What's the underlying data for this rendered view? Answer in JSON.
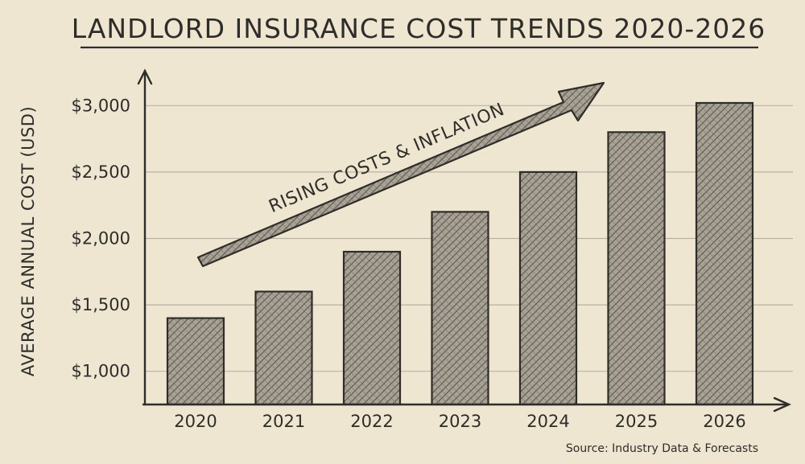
{
  "chart_data": {
    "type": "bar",
    "title": "LANDLORD INSURANCE COST TRENDS 2020-2026",
    "ylabel": "AVERAGE ANNUAL COST (USD)",
    "xlabel": "",
    "categories": [
      "2020",
      "2021",
      "2022",
      "2023",
      "2024",
      "2025",
      "2026"
    ],
    "values": [
      1400,
      1600,
      1900,
      2200,
      2500,
      2800,
      3020
    ],
    "ylim": [
      750,
      3250
    ],
    "yticks": [
      1000,
      1500,
      2000,
      2500,
      3000
    ],
    "ytick_labels": [
      "$1,000",
      "$1,500",
      "$2,000",
      "$2,500",
      "$3,000"
    ],
    "grid": true,
    "annotation": "RISING COSTS & INFLATION",
    "source": "Source: Industry Data & Forecasts",
    "colors": {
      "background": "#efe6d2",
      "ink": "#2f2d2a",
      "grid": "#b9b2a4"
    }
  }
}
